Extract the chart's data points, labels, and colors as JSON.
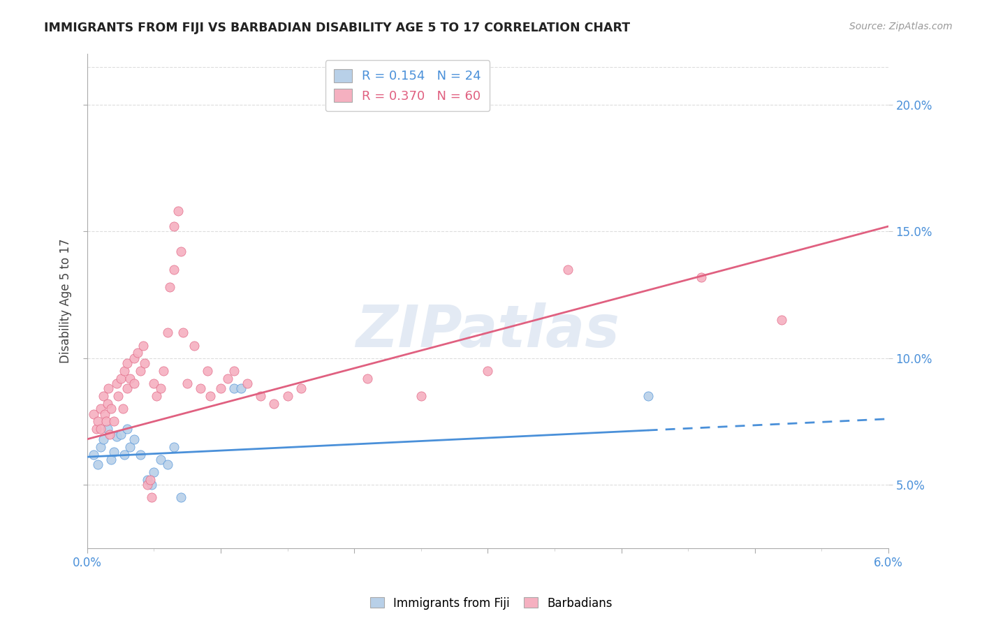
{
  "title": "IMMIGRANTS FROM FIJI VS BARBADIAN DISABILITY AGE 5 TO 17 CORRELATION CHART",
  "source": "Source: ZipAtlas.com",
  "ylabel": "Disability Age 5 to 17",
  "right_yticks": [
    5.0,
    10.0,
    15.0,
    20.0
  ],
  "x_range": [
    0.0,
    6.0
  ],
  "y_range": [
    2.5,
    22.0
  ],
  "fiji_R": "0.154",
  "fiji_N": "24",
  "barb_R": "0.370",
  "barb_N": "60",
  "fiji_color": "#b8d0e8",
  "fiji_line_color": "#4a90d9",
  "barb_color": "#f5b0c0",
  "barb_line_color": "#e06080",
  "watermark_text": "ZIPatlas",
  "fiji_line_x0": 0.0,
  "fiji_line_y0": 6.1,
  "fiji_line_x1": 6.0,
  "fiji_line_y1": 7.6,
  "fiji_solid_end": 4.2,
  "barb_line_x0": 0.0,
  "barb_line_y0": 6.8,
  "barb_line_x1": 6.0,
  "barb_line_y1": 15.2,
  "fiji_dots": [
    [
      0.05,
      6.2
    ],
    [
      0.08,
      5.8
    ],
    [
      0.1,
      6.5
    ],
    [
      0.12,
      6.8
    ],
    [
      0.15,
      7.2
    ],
    [
      0.18,
      6.0
    ],
    [
      0.2,
      6.3
    ],
    [
      0.22,
      6.9
    ],
    [
      0.25,
      7.0
    ],
    [
      0.28,
      6.2
    ],
    [
      0.3,
      7.2
    ],
    [
      0.32,
      6.5
    ],
    [
      0.35,
      6.8
    ],
    [
      0.4,
      6.2
    ],
    [
      0.45,
      5.2
    ],
    [
      0.48,
      5.0
    ],
    [
      0.5,
      5.5
    ],
    [
      0.55,
      6.0
    ],
    [
      0.6,
      5.8
    ],
    [
      0.65,
      6.5
    ],
    [
      0.7,
      4.5
    ],
    [
      1.1,
      8.8
    ],
    [
      1.15,
      8.8
    ],
    [
      4.2,
      8.5
    ]
  ],
  "barb_dots": [
    [
      0.05,
      7.8
    ],
    [
      0.07,
      7.2
    ],
    [
      0.08,
      7.5
    ],
    [
      0.1,
      8.0
    ],
    [
      0.1,
      7.2
    ],
    [
      0.12,
      8.5
    ],
    [
      0.13,
      7.8
    ],
    [
      0.14,
      7.5
    ],
    [
      0.15,
      8.2
    ],
    [
      0.16,
      8.8
    ],
    [
      0.17,
      7.0
    ],
    [
      0.18,
      8.0
    ],
    [
      0.2,
      7.5
    ],
    [
      0.22,
      9.0
    ],
    [
      0.23,
      8.5
    ],
    [
      0.25,
      9.2
    ],
    [
      0.27,
      8.0
    ],
    [
      0.28,
      9.5
    ],
    [
      0.3,
      9.8
    ],
    [
      0.3,
      8.8
    ],
    [
      0.32,
      9.2
    ],
    [
      0.35,
      10.0
    ],
    [
      0.35,
      9.0
    ],
    [
      0.38,
      10.2
    ],
    [
      0.4,
      9.5
    ],
    [
      0.42,
      10.5
    ],
    [
      0.43,
      9.8
    ],
    [
      0.45,
      5.0
    ],
    [
      0.47,
      5.2
    ],
    [
      0.48,
      4.5
    ],
    [
      0.5,
      9.0
    ],
    [
      0.52,
      8.5
    ],
    [
      0.55,
      8.8
    ],
    [
      0.57,
      9.5
    ],
    [
      0.6,
      11.0
    ],
    [
      0.62,
      12.8
    ],
    [
      0.65,
      13.5
    ],
    [
      0.65,
      15.2
    ],
    [
      0.68,
      15.8
    ],
    [
      0.7,
      14.2
    ],
    [
      0.72,
      11.0
    ],
    [
      0.75,
      9.0
    ],
    [
      0.8,
      10.5
    ],
    [
      0.85,
      8.8
    ],
    [
      0.9,
      9.5
    ],
    [
      0.92,
      8.5
    ],
    [
      1.0,
      8.8
    ],
    [
      1.05,
      9.2
    ],
    [
      1.1,
      9.5
    ],
    [
      1.2,
      9.0
    ],
    [
      1.3,
      8.5
    ],
    [
      1.4,
      8.2
    ],
    [
      1.5,
      8.5
    ],
    [
      1.6,
      8.8
    ],
    [
      2.1,
      9.2
    ],
    [
      2.5,
      8.5
    ],
    [
      3.0,
      9.5
    ],
    [
      3.6,
      13.5
    ],
    [
      4.6,
      13.2
    ],
    [
      5.2,
      11.5
    ]
  ]
}
